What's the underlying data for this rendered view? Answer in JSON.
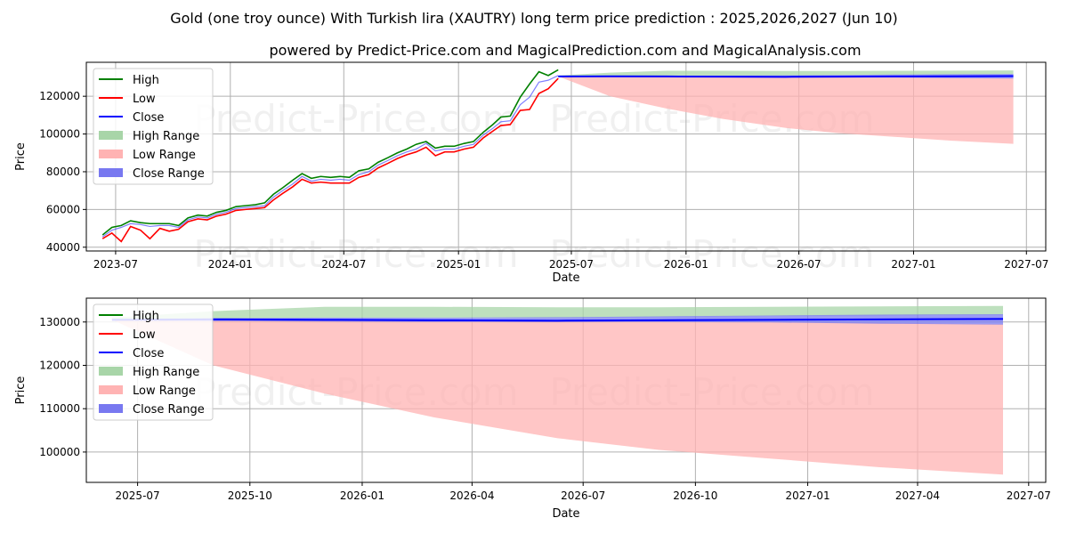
{
  "title": "Gold (one troy ounce) With Turkish lira (XAUTRY) long term price prediction : 2025,2026,2027 (Jun 10)",
  "subtitle": "powered by Predict-Price.com and MagicalPrediction.com and MagicalAnalysis.com",
  "watermark": "Predict-Price.com",
  "colors": {
    "high": "#008000",
    "low": "#ff0000",
    "close": "#0000ff",
    "high_range": "#a8d5a8",
    "low_range": "#ffb3b3",
    "close_range": "#7878f0"
  },
  "legend": [
    "High",
    "Low",
    "Close",
    "High Range",
    "Low Range",
    "Close Range"
  ],
  "chart_data": [
    {
      "type": "line",
      "xlabel": "Date",
      "ylabel": "Price",
      "legend_position": "top-left",
      "grid": true,
      "x_ticks": [
        "2023-07",
        "2024-01",
        "2024-07",
        "2025-01",
        "2025-07",
        "2026-01",
        "2026-07",
        "2027-01",
        "2027-07"
      ],
      "y_ticks": [
        "40000",
        "60000",
        "80000",
        "100000",
        "120000"
      ],
      "xlim": [
        "2023-05-15",
        "2027-08-01"
      ],
      "ylim": [
        38000,
        138000
      ],
      "history": {
        "dates": [
          "2023-06-10",
          "2023-06-25",
          "2023-07-10",
          "2023-07-25",
          "2023-08-10",
          "2023-08-25",
          "2023-09-10",
          "2023-09-25",
          "2023-10-10",
          "2023-10-25",
          "2023-11-10",
          "2023-11-25",
          "2023-12-10",
          "2023-12-25",
          "2024-01-10",
          "2024-01-25",
          "2024-02-10",
          "2024-02-25",
          "2024-03-10",
          "2024-03-25",
          "2024-04-10",
          "2024-04-25",
          "2024-05-10",
          "2024-05-25",
          "2024-06-10",
          "2024-06-25",
          "2024-07-10",
          "2024-07-25",
          "2024-08-10",
          "2024-08-25",
          "2024-09-10",
          "2024-09-25",
          "2024-10-10",
          "2024-10-25",
          "2024-11-10",
          "2024-11-25",
          "2024-12-10",
          "2024-12-25",
          "2025-01-10",
          "2025-01-25",
          "2025-02-10",
          "2025-02-25",
          "2025-03-10",
          "2025-03-25",
          "2025-04-10",
          "2025-04-25",
          "2025-05-10",
          "2025-05-25",
          "2025-06-10"
        ],
        "close": [
          45500,
          49000,
          50500,
          52500,
          52000,
          51000,
          51500,
          51500,
          50500,
          54500,
          56000,
          55500,
          57500,
          58500,
          60500,
          61000,
          61500,
          62000,
          66500,
          70000,
          73500,
          77500,
          75000,
          76000,
          75500,
          76000,
          75500,
          78500,
          80000,
          83500,
          86000,
          88500,
          90500,
          92000,
          95000,
          91000,
          92000,
          92000,
          93500,
          94500,
          99500,
          103000,
          106500,
          107000,
          115500,
          119500,
          127500,
          128500,
          131000
        ],
        "high": [
          46500,
          50500,
          51500,
          54000,
          53000,
          52500,
          52500,
          52500,
          51500,
          55500,
          57000,
          56500,
          58500,
          59500,
          61500,
          62000,
          62500,
          63500,
          68000,
          71500,
          75500,
          79000,
          76500,
          77500,
          77000,
          77500,
          77000,
          80500,
          81500,
          85000,
          87500,
          90000,
          92000,
          94500,
          96000,
          92500,
          93500,
          93500,
          95000,
          96000,
          101000,
          105000,
          109000,
          109500,
          119500,
          126500,
          133000,
          131000,
          134000
        ],
        "low": [
          44500,
          47500,
          43000,
          51000,
          49000,
          44500,
          50000,
          48500,
          49500,
          53500,
          55000,
          54500,
          56500,
          57500,
          59500,
          60000,
          60500,
          61000,
          65000,
          68500,
          72000,
          76000,
          74000,
          74500,
          74000,
          74000,
          74000,
          77000,
          78500,
          82000,
          84500,
          87000,
          89000,
          90500,
          93000,
          88500,
          90500,
          90500,
          92000,
          93000,
          98000,
          101500,
          104500,
          105000,
          112500,
          113000,
          121500,
          124000,
          129500
        ]
      },
      "forecast": {
        "dates": [
          "2025-06-10",
          "2025-09-01",
          "2025-12-01",
          "2026-03-01",
          "2026-06-10",
          "2026-09-01",
          "2026-12-01",
          "2027-03-01",
          "2027-06-10"
        ],
        "close": [
          130500,
          130600,
          130500,
          130400,
          130300,
          130400,
          130500,
          130600,
          130700
        ],
        "high_range": [
          [
            130500,
            131000
          ],
          [
            130800,
            132500
          ],
          [
            131000,
            133500
          ],
          [
            131000,
            133500
          ],
          [
            131000,
            133400
          ],
          [
            131200,
            133400
          ],
          [
            131400,
            133500
          ],
          [
            131500,
            133600
          ],
          [
            131700,
            133700
          ]
        ],
        "low_range": [
          [
            130500,
            130500
          ],
          [
            120000,
            130400
          ],
          [
            113500,
            130400
          ],
          [
            108000,
            130300
          ],
          [
            103200,
            130200
          ],
          [
            100500,
            130100
          ],
          [
            98500,
            130000
          ],
          [
            96500,
            129800
          ],
          [
            94800,
            129500
          ]
        ],
        "close_range": [
          [
            130300,
            130700
          ],
          [
            130200,
            130900
          ],
          [
            130100,
            131000
          ],
          [
            130000,
            131000
          ],
          [
            130000,
            131100
          ],
          [
            130000,
            131300
          ],
          [
            129900,
            131500
          ],
          [
            129600,
            131700
          ],
          [
            129400,
            131800
          ]
        ]
      }
    },
    {
      "type": "area",
      "xlabel": "Date",
      "ylabel": "Price",
      "legend_position": "top-left",
      "grid": true,
      "x_ticks": [
        "2025-07",
        "2025-10",
        "2026-01",
        "2026-04",
        "2026-07",
        "2026-10",
        "2027-01",
        "2027-04",
        "2027-07"
      ],
      "y_ticks": [
        "100000",
        "110000",
        "120000",
        "130000"
      ],
      "xlim": [
        "2025-05-20",
        "2027-07-15"
      ],
      "ylim": [
        93000,
        135500
      ],
      "forecast": {
        "dates": [
          "2025-06-10",
          "2025-09-01",
          "2025-12-01",
          "2026-03-01",
          "2026-06-10",
          "2026-09-01",
          "2026-12-01",
          "2027-03-01",
          "2027-06-10"
        ],
        "close": [
          130500,
          130600,
          130500,
          130400,
          130300,
          130400,
          130500,
          130600,
          130700
        ],
        "high_range": [
          [
            130500,
            131000
          ],
          [
            130800,
            132500
          ],
          [
            131000,
            133500
          ],
          [
            131000,
            133500
          ],
          [
            131000,
            133400
          ],
          [
            131200,
            133400
          ],
          [
            131400,
            133500
          ],
          [
            131500,
            133600
          ],
          [
            131700,
            133700
          ]
        ],
        "low_range": [
          [
            130500,
            130500
          ],
          [
            120000,
            130400
          ],
          [
            113500,
            130400
          ],
          [
            108000,
            130300
          ],
          [
            103200,
            130200
          ],
          [
            100500,
            130100
          ],
          [
            98500,
            130000
          ],
          [
            96500,
            129800
          ],
          [
            94800,
            129500
          ]
        ],
        "close_range": [
          [
            130300,
            130700
          ],
          [
            130200,
            130900
          ],
          [
            130100,
            131000
          ],
          [
            130000,
            131000
          ],
          [
            130000,
            131100
          ],
          [
            130000,
            131300
          ],
          [
            129900,
            131500
          ],
          [
            129600,
            131700
          ],
          [
            129400,
            131800
          ]
        ]
      }
    }
  ]
}
